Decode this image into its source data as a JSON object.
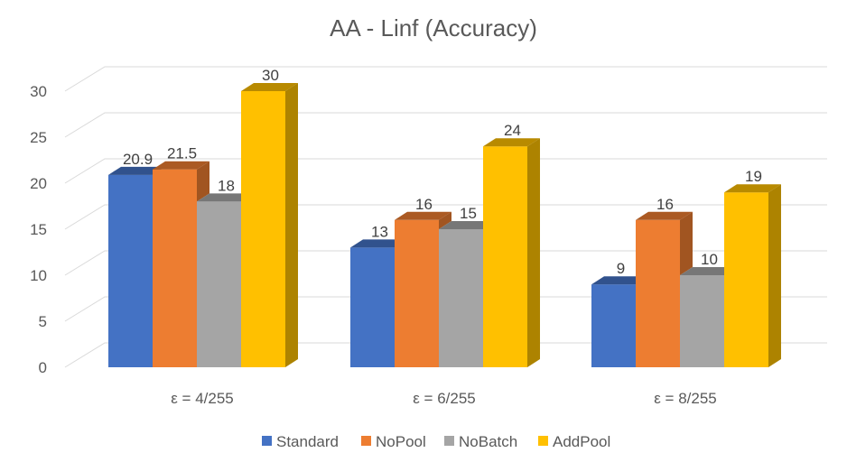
{
  "chart_data": {
    "type": "bar",
    "title": "AA - Linf (Accuracy)",
    "categories": [
      "ε = 4/255",
      "ε = 6/255",
      "ε = 8/255"
    ],
    "series": [
      {
        "name": "Standard",
        "values": [
          20.9,
          13,
          9
        ],
        "labels": [
          "20.9",
          "13",
          "9"
        ],
        "color": "#4472C4"
      },
      {
        "name": "NoPool",
        "values": [
          21.5,
          16,
          16
        ],
        "labels": [
          "21.5",
          "16",
          "16"
        ],
        "color": "#ED7D31"
      },
      {
        "name": "NoBatch",
        "values": [
          18,
          15,
          10
        ],
        "labels": [
          "18",
          "15",
          "10"
        ],
        "color": "#A5A5A5"
      },
      {
        "name": "AddPool",
        "values": [
          30,
          24,
          19
        ],
        "labels": [
          "30",
          "24",
          "19"
        ],
        "color": "#FFC000"
      }
    ],
    "yticks": [
      "0",
      "5",
      "10",
      "15",
      "20",
      "25",
      "30"
    ],
    "ylim": [
      0,
      30
    ],
    "xlabel": "",
    "ylabel": "",
    "grid": true,
    "legend_position": "bottom",
    "style": "3d-column"
  }
}
